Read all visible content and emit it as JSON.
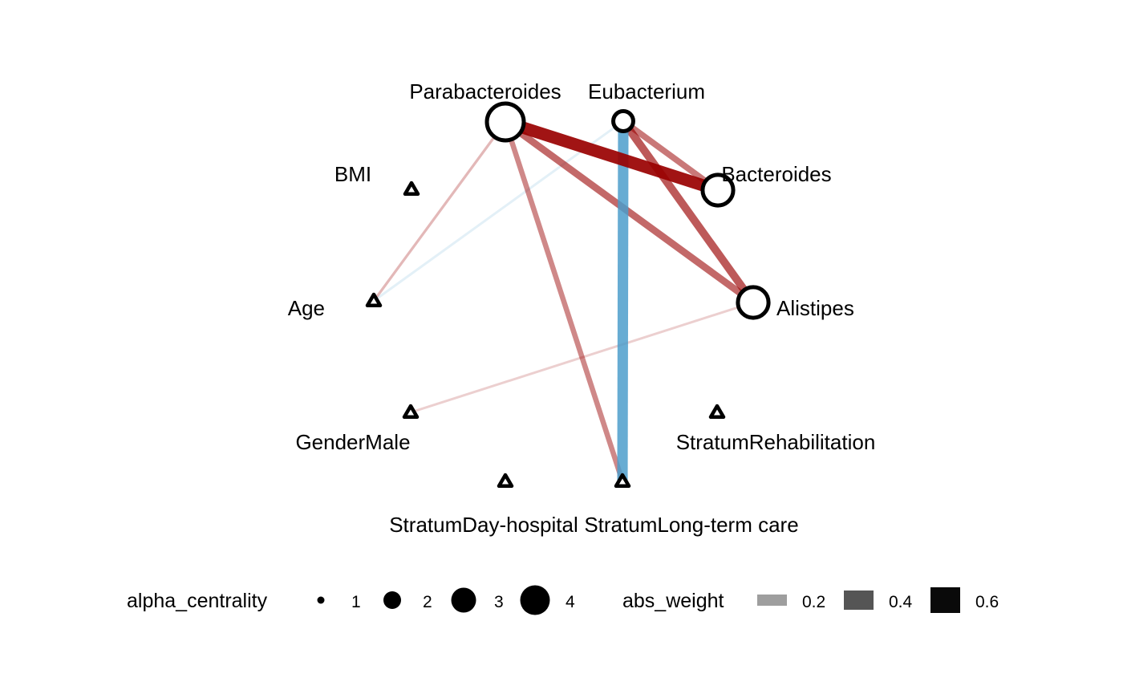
{
  "graph": {
    "nodes": [
      {
        "id": "Parabacteroides",
        "label": "Parabacteroides",
        "shape": "circle",
        "alpha_centrality": 4.1
      },
      {
        "id": "Eubacterium",
        "label": "Eubacterium",
        "shape": "circle",
        "alpha_centrality": 1.4
      },
      {
        "id": "Bacteroides",
        "label": "Bacteroides",
        "shape": "circle",
        "alpha_centrality": 3.1
      },
      {
        "id": "Alistipes",
        "label": "Alistipes",
        "shape": "circle",
        "alpha_centrality": 3.1
      },
      {
        "id": "BMI",
        "label": "BMI",
        "shape": "triangle"
      },
      {
        "id": "Age",
        "label": "Age",
        "shape": "triangle"
      },
      {
        "id": "GenderMale",
        "label": "GenderMale",
        "shape": "triangle"
      },
      {
        "id": "StratumRehabilitation",
        "label": "StratumRehabilitation",
        "shape": "triangle"
      },
      {
        "id": "StratumDayHospital",
        "label": "StratumDay-hospital",
        "shape": "triangle"
      },
      {
        "id": "StratumLongTermCare",
        "label": "StratumLong-term care",
        "shape": "triangle"
      }
    ],
    "edges": [
      {
        "from": "Parabacteroides",
        "to": "Age",
        "abs_weight": 0.15,
        "sign": "positive"
      },
      {
        "from": "Eubacterium",
        "to": "Age",
        "abs_weight": 0.05,
        "sign": "negative"
      },
      {
        "from": "Alistipes",
        "to": "GenderMale",
        "abs_weight": 0.08,
        "sign": "positive"
      },
      {
        "from": "Parabacteroides",
        "to": "StratumLongTermCare",
        "abs_weight": 0.3,
        "sign": "positive"
      },
      {
        "from": "Parabacteroides",
        "to": "Alistipes",
        "abs_weight": 0.4,
        "sign": "positive"
      },
      {
        "from": "Eubacterium",
        "to": "Alistipes",
        "abs_weight": 0.45,
        "sign": "positive"
      },
      {
        "from": "Eubacterium",
        "to": "Bacteroides",
        "abs_weight": 0.35,
        "sign": "positive"
      },
      {
        "from": "Eubacterium",
        "to": "StratumLongTermCare",
        "abs_weight": 0.6,
        "sign": "negative"
      },
      {
        "from": "Parabacteroides",
        "to": "Bacteroides",
        "abs_weight": 0.7,
        "sign": "positive"
      }
    ],
    "colors": {
      "positive": "#990000",
      "negative": "#4a9ccb"
    }
  },
  "legend": {
    "alpha_title": "alpha_centrality",
    "alpha_keys": [
      {
        "label": "1",
        "value": 1
      },
      {
        "label": "2",
        "value": 2
      },
      {
        "label": "3",
        "value": 3
      },
      {
        "label": "4",
        "value": 4
      }
    ],
    "weight_title": "abs_weight",
    "weight_keys": [
      {
        "label": "0.2",
        "value": 0.2,
        "color": "#9e9e9e"
      },
      {
        "label": "0.4",
        "value": 0.4,
        "color": "#555555"
      },
      {
        "label": "0.6",
        "value": 0.6,
        "color": "#0a0a0a"
      }
    ]
  }
}
